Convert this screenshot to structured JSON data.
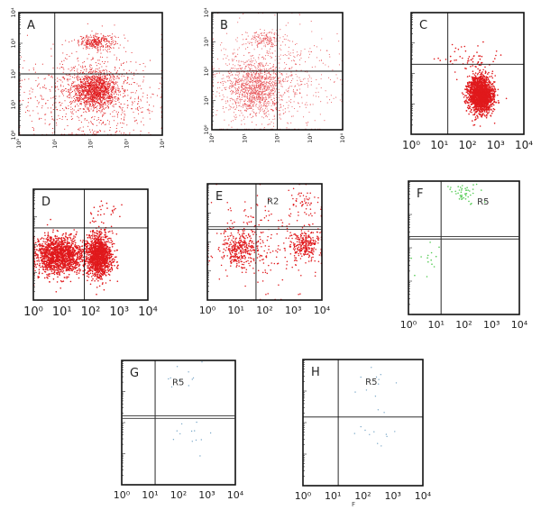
{
  "figure": {
    "stray_label": "F"
  },
  "chart_data": [
    {
      "panel": "A",
      "type": "scatter",
      "xlim": [
        1,
        10000
      ],
      "ylim": [
        1,
        10000
      ],
      "log_x": true,
      "log_y": true,
      "x_ticks": [
        "10⁰",
        "10¹",
        "10²",
        "10³",
        "10⁴"
      ],
      "y_ticks": [
        "10⁰",
        "10¹",
        "10²",
        "10³",
        "10⁴"
      ],
      "tick_orientation": "rotated",
      "gate_x": 10,
      "gate_y": 100,
      "gate_style": "thin",
      "point_color": "#e0191c",
      "grid": false,
      "clusters": [
        {
          "cx": 150,
          "cy": 1100,
          "spread_x": 0.25,
          "spread_y": 0.12,
          "count": 300
        },
        {
          "cx": 140,
          "cy": 30,
          "spread_x": 0.3,
          "spread_y": 0.28,
          "count": 1300
        },
        {
          "cx": 100,
          "cy": 20,
          "spread_x": 1.0,
          "spread_y": 0.8,
          "count": 900
        }
      ]
    },
    {
      "panel": "B",
      "type": "scatter",
      "xlim": [
        1,
        10000
      ],
      "ylim": [
        1,
        10000
      ],
      "log_x": true,
      "log_y": true,
      "x_ticks": [
        "10⁰",
        "10¹",
        "10²",
        "10³",
        "10⁴"
      ],
      "y_ticks": [
        "10⁰",
        "10¹",
        "10²",
        "10³",
        "10⁴"
      ],
      "tick_orientation": "rotated",
      "gate_x": 100,
      "gate_y": 100,
      "gate_style": "thin",
      "point_color": "#e8565a",
      "grid": false,
      "clusters": [
        {
          "cx": 40,
          "cy": 1200,
          "spread_x": 0.25,
          "spread_y": 0.15,
          "count": 150
        },
        {
          "cx": 20,
          "cy": 25,
          "spread_x": 0.45,
          "spread_y": 0.45,
          "count": 1000
        },
        {
          "cx": 50,
          "cy": 50,
          "spread_x": 1.0,
          "spread_y": 0.9,
          "count": 700
        }
      ]
    },
    {
      "panel": "C",
      "type": "scatter",
      "xlim": [
        1,
        10000
      ],
      "ylim": [
        1,
        10000
      ],
      "log_x": true,
      "log_y": true,
      "x_ticks": [
        "10⁰",
        "10¹",
        "10²",
        "10³",
        "10⁴"
      ],
      "y_ticks": [],
      "tick_orientation": "horizontal",
      "gate_x": 20,
      "gate_y": 200,
      "gate_style": "thin",
      "point_color": "#e0191c",
      "grid": false,
      "clusters": [
        {
          "cx": 300,
          "cy": 20,
          "spread_x": 0.22,
          "spread_y": 0.3,
          "count": 1800
        },
        {
          "cx": 150,
          "cy": 300,
          "spread_x": 0.5,
          "spread_y": 0.25,
          "count": 60
        }
      ]
    },
    {
      "panel": "D",
      "type": "scatter",
      "xlim": [
        1,
        10000
      ],
      "ylim": [
        1,
        10000
      ],
      "log_x": true,
      "log_y": true,
      "x_ticks": [
        "10⁰",
        "10¹",
        "10²",
        "10³",
        "10⁴"
      ],
      "y_ticks": [],
      "tick_orientation": "horizontal",
      "gate_x": 60,
      "gate_y": 400,
      "gate_style": "thin",
      "point_color": "#e0191c",
      "grid": false,
      "clusters": [
        {
          "cx": 8,
          "cy": 40,
          "spread_x": 0.45,
          "spread_y": 0.35,
          "count": 1500
        },
        {
          "cx": 200,
          "cy": 40,
          "spread_x": 0.22,
          "spread_y": 0.4,
          "count": 1200
        },
        {
          "cx": 300,
          "cy": 1500,
          "spread_x": 0.3,
          "spread_y": 0.25,
          "count": 25
        }
      ]
    },
    {
      "panel": "E",
      "type": "scatter",
      "xlim": [
        1,
        10000
      ],
      "ylim": [
        1,
        10000
      ],
      "log_x": true,
      "log_y": true,
      "x_ticks": [
        "10⁰",
        "10¹",
        "10²",
        "10³",
        "10⁴"
      ],
      "y_ticks": [],
      "tick_orientation": "horizontal",
      "gate_x": 50,
      "gate_y": 300,
      "gate_style": "double",
      "point_color": "#e0191c",
      "grid": false,
      "region_label": {
        "text": "R2",
        "x": 120,
        "y": 2000
      },
      "clusters": [
        {
          "cx": 15,
          "cy": 60,
          "spread_x": 0.35,
          "spread_y": 0.35,
          "count": 350
        },
        {
          "cx": 2500,
          "cy": 80,
          "spread_x": 0.25,
          "spread_y": 0.25,
          "count": 250
        },
        {
          "cx": 2000,
          "cy": 2500,
          "spread_x": 0.25,
          "spread_y": 0.3,
          "count": 50
        },
        {
          "cx": 100,
          "cy": 100,
          "spread_x": 1.0,
          "spread_y": 0.9,
          "count": 200
        }
      ]
    },
    {
      "panel": "F",
      "type": "scatter",
      "xlim": [
        1,
        10000
      ],
      "ylim": [
        1,
        10000
      ],
      "log_x": true,
      "log_y": true,
      "x_ticks": [
        "10⁰",
        "10¹",
        "10²",
        "10³",
        "10⁴"
      ],
      "y_ticks": [],
      "tick_orientation": "horizontal",
      "gate_x": 15,
      "gate_y": 200,
      "gate_style": "double",
      "point_color": "#55cc55",
      "grid": false,
      "region_label": {
        "text": "R5",
        "x": 300,
        "y": 2000
      },
      "clusters": [
        {
          "cx": 100,
          "cy": 4500,
          "spread_x": 0.3,
          "spread_y": 0.15,
          "count": 45
        },
        {
          "cx": 4,
          "cy": 50,
          "spread_x": 0.3,
          "spread_y": 0.35,
          "count": 14
        }
      ]
    },
    {
      "panel": "G",
      "type": "scatter",
      "xlim": [
        1,
        10000
      ],
      "ylim": [
        1,
        10000
      ],
      "log_x": true,
      "log_y": true,
      "x_ticks": [
        "10⁰",
        "10¹",
        "10²",
        "10³",
        "10⁴"
      ],
      "y_ticks": [],
      "tick_orientation": "horizontal",
      "gate_x": 15,
      "gate_y": 150,
      "gate_style": "double",
      "point_color": "#7aa8c8",
      "grid": false,
      "region_label": {
        "text": "R5",
        "x": 60,
        "y": 1600
      },
      "clusters": [
        {
          "cx": 200,
          "cy": 2500,
          "spread_x": 0.4,
          "spread_y": 0.35,
          "count": 10
        },
        {
          "cx": 250,
          "cy": 40,
          "spread_x": 0.4,
          "spread_y": 0.35,
          "count": 12
        }
      ]
    },
    {
      "panel": "H",
      "type": "scatter",
      "xlim": [
        1,
        10000
      ],
      "ylim": [
        1,
        10000
      ],
      "log_x": true,
      "log_y": true,
      "x_ticks": [
        "10⁰",
        "10¹",
        "10²",
        "10³",
        "10⁴"
      ],
      "y_ticks": [],
      "tick_orientation": "horizontal",
      "gate_x": 15,
      "gate_y": 150,
      "gate_style": "thin",
      "point_color": "#7aa8c8",
      "grid": false,
      "region_label": {
        "text": "R5",
        "x": 120,
        "y": 1600
      },
      "clusters": [
        {
          "cx": 200,
          "cy": 2500,
          "spread_x": 0.4,
          "spread_y": 0.35,
          "count": 10
        },
        {
          "cx": 250,
          "cy": 40,
          "spread_x": 0.4,
          "spread_y": 0.35,
          "count": 12
        }
      ]
    }
  ]
}
